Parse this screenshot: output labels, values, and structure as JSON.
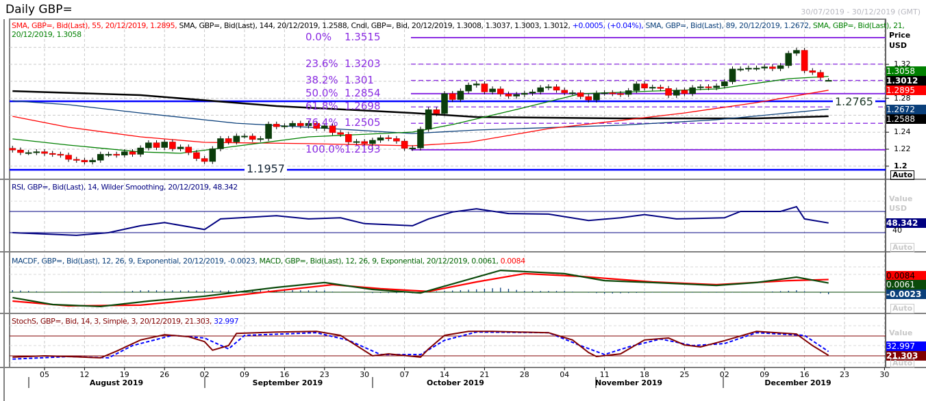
{
  "header": {
    "title": "Daily GBP=",
    "date_range": "30/07/2019 - 30/12/2019 (GMT)"
  },
  "legends": {
    "price": [
      {
        "text": "SMA, GBP=, Bid(Last),  55, 20/12/2019, 1.2895, ",
        "color": "#ff0000"
      },
      {
        "text": "SMA, GBP=, Bid(Last),  144, 20/12/2019, 1.2588, Cndl, GBP=, Bid, 20/12/2019, 1.3008, 1.3037, 1.3003, 1.3012, ",
        "color": "#000000"
      },
      {
        "text": "+0.0005, (+0.04%), ",
        "color": "#0000ff"
      },
      {
        "text": "SMA, GBP=, Bid(Last),  89, 20/12/2019, 1.2672, ",
        "color": "#0a3f7a"
      },
      {
        "text": "SMA, GBP=, Bid(Last),  21,",
        "color": "#008000"
      }
    ],
    "price_line2": "20/12/2019, 1.3058",
    "rsi": "RSI, GBP=, Bid(Last),  14, Wilder Smoothing, 20/12/2019, 48.342",
    "macd": [
      {
        "text": "MACDF, GBP=, Bid(Last),  12, 26, 9, Exponential,  20/12/2019, -0.0023, ",
        "color": "#0a3f7a"
      },
      {
        "text": "MACD, GBP=, Bid(Last),  12, 26, 9, Exponential, 20/12/2019, 0.0061, ",
        "color": "#006400"
      },
      {
        "text": "0.0084",
        "color": "#ff0000"
      }
    ],
    "stoch": [
      {
        "text": "StochS, GBP=, Bid,  14, 3, Simple, 3, 20/12/2019, 21.303, ",
        "color": "#800000"
      },
      {
        "text": "32.997",
        "color": "#0000ff"
      }
    ]
  },
  "axis": {
    "price_header": "Price",
    "price_unit": "USD",
    "price_ticks": [
      "1.32",
      "1.28",
      "1.24",
      "1.22",
      "1.2"
    ],
    "value_header": "Value",
    "value_unit": "USD",
    "auto": "Auto",
    "rsi_tick": "40",
    "x_ticks": [
      "05",
      "12",
      "19",
      "26",
      "02",
      "09",
      "16",
      "23",
      "30",
      "07",
      "14",
      "21",
      "28",
      "04",
      "11",
      "18",
      "25",
      "02",
      "09",
      "16",
      "23",
      "30"
    ],
    "months": [
      "August 2019",
      "September 2019",
      "October 2019",
      "November 2019",
      "December 2019"
    ]
  },
  "value_boxes": {
    "price": [
      {
        "v": "1.3058",
        "color": "#008000"
      },
      {
        "v": "1.3012",
        "color": "#000000"
      },
      {
        "v": "1.2895",
        "color": "#ff0000"
      },
      {
        "v": "1.2672",
        "color": "#0a3f7a"
      },
      {
        "v": "1.2588",
        "color": "#000000"
      }
    ],
    "rsi": {
      "v": "48.342",
      "color": "#000080"
    },
    "macd": [
      {
        "v": "0.0084",
        "color": "#ff0000"
      },
      {
        "v": "0.0061",
        "color": "#0a4a0a"
      },
      {
        "v": "-0.0023",
        "color": "#0a3f7a"
      }
    ],
    "stoch": [
      {
        "v": "32.997",
        "color": "#0000ff"
      },
      {
        "v": "21.303",
        "color": "#800000"
      }
    ]
  },
  "fibonacci": [
    {
      "pct": "0.0%",
      "level": "1.3515",
      "value": 1.3515,
      "style": "solid"
    },
    {
      "pct": "23.6%",
      "level": "1.3203",
      "value": 1.3203,
      "style": "dashed"
    },
    {
      "pct": "38.2%",
      "level": "1.301",
      "value": 1.301,
      "style": "dashed"
    },
    {
      "pct": "50.0%",
      "level": "1.2854",
      "value": 1.2854,
      "style": "solid"
    },
    {
      "pct": "61.8%",
      "level": "1.2698",
      "value": 1.2698,
      "style": "dashed"
    },
    {
      "pct": "76.4%",
      "level": "1.2505",
      "value": 1.2505,
      "style": "dashed"
    },
    {
      "pct": "100.0%",
      "level": "1.2193",
      "value": 1.2193,
      "style": "solid"
    }
  ],
  "levels": [
    {
      "label": "1.2765",
      "value": 1.2765
    },
    {
      "label": "1.1957",
      "value": 1.1957
    }
  ],
  "chart_data": {
    "type": "candlestick",
    "title": "Daily GBP=",
    "ylabel": "Price USD",
    "ylim": [
      1.19,
      1.355
    ],
    "first_date": "31/07/2019",
    "last_date": "20/12/2019",
    "closes": [
      1.219,
      1.216,
      1.216,
      1.217,
      1.215,
      1.214,
      1.213,
      1.208,
      1.207,
      1.205,
      1.207,
      1.214,
      1.214,
      1.213,
      1.217,
      1.214,
      1.2215,
      1.2275,
      1.222,
      1.2285,
      1.2205,
      1.2225,
      1.216,
      1.209,
      1.2055,
      1.2205,
      1.2325,
      1.2285,
      1.2355,
      1.2355,
      1.2315,
      1.2325,
      1.2495,
      1.2465,
      1.2475,
      1.2505,
      1.2475,
      1.2505,
      1.2445,
      1.2475,
      1.2395,
      1.2375,
      1.2285,
      1.229,
      1.2265,
      1.2305,
      1.2335,
      1.2325,
      1.2295,
      1.221,
      1.2215,
      1.2435,
      1.2665,
      1.262,
      1.2855,
      1.2785,
      1.2885,
      1.2955,
      1.297,
      1.2875,
      1.291,
      1.285,
      1.2825,
      1.2845,
      1.286,
      1.2875,
      1.2925,
      1.2935,
      1.2895,
      1.2865,
      1.2865,
      1.282,
      1.278,
      1.286,
      1.2865,
      1.2855,
      1.2845,
      1.289,
      1.297,
      1.292,
      1.293,
      1.2915,
      1.2835,
      1.2895,
      1.2855,
      1.2925,
      1.2935,
      1.2925,
      1.2945,
      1.2995,
      1.3145,
      1.3145,
      1.3155,
      1.3155,
      1.317,
      1.315,
      1.3185,
      1.333,
      1.3365,
      1.3125,
      1.3105,
      1.3045,
      1.3012
    ],
    "last_candle": {
      "open": 1.3008,
      "high": 1.3037,
      "low": 1.3003,
      "close": 1.3012
    },
    "sma": [
      {
        "name": "SMA 144",
        "color": "#000000",
        "points": [
          [
            0,
            1.2885
          ],
          [
            16,
            1.2837
          ],
          [
            33,
            1.2708
          ],
          [
            50,
            1.2627
          ],
          [
            58,
            1.2579
          ],
          [
            76,
            1.2563
          ],
          [
            93,
            1.2563
          ],
          [
            102,
            1.2588
          ]
        ]
      },
      {
        "name": "SMA 89",
        "color": "#0a3f7a",
        "points": [
          [
            0,
            1.277
          ],
          [
            7,
            1.2724
          ],
          [
            16,
            1.2627
          ],
          [
            28,
            1.2506
          ],
          [
            37,
            1.2458
          ],
          [
            50,
            1.2385
          ],
          [
            58,
            1.2426
          ],
          [
            76,
            1.2482
          ],
          [
            88,
            1.2547
          ],
          [
            102,
            1.2672
          ]
        ]
      },
      {
        "name": "SMA 55",
        "color": "#ff0000",
        "points": [
          [
            0,
            1.2587
          ],
          [
            7,
            1.2458
          ],
          [
            16,
            1.2345
          ],
          [
            24,
            1.2281
          ],
          [
            37,
            1.2265
          ],
          [
            50,
            1.224
          ],
          [
            57,
            1.2281
          ],
          [
            67,
            1.2442
          ],
          [
            76,
            1.2539
          ],
          [
            84,
            1.2627
          ],
          [
            93,
            1.2748
          ],
          [
            102,
            1.2895
          ]
        ]
      },
      {
        "name": "SMA 21",
        "color": "#008000",
        "points": [
          [
            0,
            1.2321
          ],
          [
            7,
            1.2248
          ],
          [
            16,
            1.2168
          ],
          [
            21,
            1.2152
          ],
          [
            27,
            1.2224
          ],
          [
            37,
            1.2345
          ],
          [
            50,
            1.2402
          ],
          [
            55,
            1.249
          ],
          [
            63,
            1.2668
          ],
          [
            71,
            1.2853
          ],
          [
            80,
            1.2885
          ],
          [
            88,
            1.291
          ],
          [
            97,
            1.3031
          ],
          [
            102,
            1.3058
          ]
        ]
      }
    ],
    "rsi": {
      "overbought": 70,
      "oversold": 30,
      "points": [
        [
          0,
          30
        ],
        [
          8,
          25
        ],
        [
          12,
          30
        ],
        [
          16,
          43
        ],
        [
          19,
          49
        ],
        [
          24,
          36
        ],
        [
          26,
          56
        ],
        [
          33,
          62
        ],
        [
          37,
          56
        ],
        [
          41,
          58
        ],
        [
          44,
          47
        ],
        [
          50,
          43
        ],
        [
          52,
          56
        ],
        [
          55,
          69
        ],
        [
          58,
          75
        ],
        [
          62,
          66
        ],
        [
          67,
          65
        ],
        [
          72,
          53
        ],
        [
          76,
          58
        ],
        [
          79,
          64
        ],
        [
          83,
          56
        ],
        [
          89,
          58
        ],
        [
          91,
          70
        ],
        [
          96,
          70
        ],
        [
          98,
          79
        ],
        [
          99,
          56
        ],
        [
          102,
          48.342
        ]
      ]
    },
    "macd": {
      "macd": [
        [
          0,
          -0.0036
        ],
        [
          5,
          -0.0082
        ],
        [
          11,
          -0.0095
        ],
        [
          17,
          -0.0059
        ],
        [
          24,
          -0.0027
        ],
        [
          33,
          0.0032
        ],
        [
          39,
          0.0064
        ],
        [
          45,
          0.0018
        ],
        [
          51,
          -0.0005
        ],
        [
          55,
          0.0055
        ],
        [
          61,
          0.0145
        ],
        [
          69,
          0.0123
        ],
        [
          74,
          0.0077
        ],
        [
          80,
          0.0064
        ],
        [
          88,
          0.0045
        ],
        [
          93,
          0.0064
        ],
        [
          98,
          0.01
        ],
        [
          102,
          0.0061
        ]
      ],
      "signal": [
        [
          0,
          -0.0059
        ],
        [
          7,
          -0.0091
        ],
        [
          16,
          -0.0086
        ],
        [
          24,
          -0.0045
        ],
        [
          33,
          0.0009
        ],
        [
          40,
          0.005
        ],
        [
          46,
          0.0023
        ],
        [
          52,
          0.0005
        ],
        [
          58,
          0.0068
        ],
        [
          64,
          0.0123
        ],
        [
          71,
          0.0105
        ],
        [
          80,
          0.0068
        ],
        [
          88,
          0.005
        ],
        [
          97,
          0.0077
        ],
        [
          102,
          0.0084
        ]
      ],
      "histogram_last": -0.0023
    },
    "stoch": {
      "upper": 80,
      "lower": 20,
      "k": [
        [
          0,
          16
        ],
        [
          4,
          20
        ],
        [
          7,
          18
        ],
        [
          11,
          14
        ],
        [
          13,
          34
        ],
        [
          16,
          68
        ],
        [
          19,
          84
        ],
        [
          22,
          78
        ],
        [
          24,
          63
        ],
        [
          25,
          37
        ],
        [
          27,
          51
        ],
        [
          28,
          88
        ],
        [
          33,
          92
        ],
        [
          38,
          94
        ],
        [
          41,
          82
        ],
        [
          43,
          51
        ],
        [
          45,
          20
        ],
        [
          47,
          26
        ],
        [
          51,
          16
        ],
        [
          52,
          41
        ],
        [
          54,
          82
        ],
        [
          57,
          94
        ],
        [
          60,
          94
        ],
        [
          67,
          90
        ],
        [
          70,
          68
        ],
        [
          72,
          30
        ],
        [
          73,
          18
        ],
        [
          76,
          26
        ],
        [
          79,
          68
        ],
        [
          82,
          74
        ],
        [
          84,
          53
        ],
        [
          86,
          47
        ],
        [
          89,
          66
        ],
        [
          93,
          94
        ],
        [
          98,
          86
        ],
        [
          100,
          51
        ],
        [
          102,
          21.303
        ]
      ],
      "d": [
        [
          0,
          10
        ],
        [
          7,
          18
        ],
        [
          12,
          14
        ],
        [
          15,
          51
        ],
        [
          20,
          82
        ],
        [
          24,
          74
        ],
        [
          27,
          41
        ],
        [
          29,
          82
        ],
        [
          38,
          90
        ],
        [
          42,
          67
        ],
        [
          46,
          24
        ],
        [
          51,
          24
        ],
        [
          54,
          67
        ],
        [
          58,
          92
        ],
        [
          67,
          90
        ],
        [
          71,
          51
        ],
        [
          74,
          24
        ],
        [
          77,
          47
        ],
        [
          81,
          71
        ],
        [
          85,
          51
        ],
        [
          89,
          57
        ],
        [
          93,
          90
        ],
        [
          99,
          82
        ],
        [
          102,
          32.997
        ]
      ]
    }
  }
}
